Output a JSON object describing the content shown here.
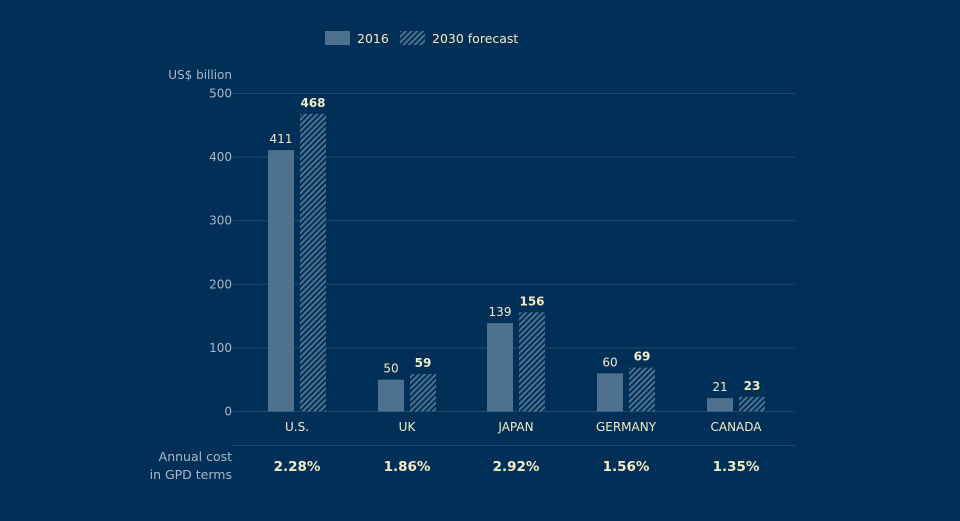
{
  "chart_data": {
    "type": "bar",
    "title": "",
    "ylabel": "US$ billion",
    "xlabel": "",
    "ylim": [
      0,
      500
    ],
    "yticks": [
      0,
      100,
      200,
      300,
      400,
      500
    ],
    "grid": true,
    "legend_position": "top-center",
    "categories": [
      "U.S.",
      "UK",
      "JAPAN",
      "GERMANY",
      "CANADA"
    ],
    "series": [
      {
        "name": "2016",
        "style": "solid",
        "color": "#4f7190",
        "values": [
          411,
          50,
          139,
          60,
          21
        ]
      },
      {
        "name": "2030 forecast",
        "style": "hatched",
        "color": "#4f7190",
        "values": [
          468,
          59,
          156,
          69,
          23
        ]
      }
    ],
    "footer": {
      "label_lines": [
        "Annual cost",
        "in GPD terms"
      ],
      "values": [
        "2.28%",
        "1.86%",
        "2.92%",
        "1.56%",
        "1.35%"
      ]
    }
  },
  "colors": {
    "background": "#003057",
    "bar": "#4f7190",
    "grid": "#1d4a70",
    "text_light": "#f3ebc4",
    "text_muted": "#a9b8c6"
  }
}
